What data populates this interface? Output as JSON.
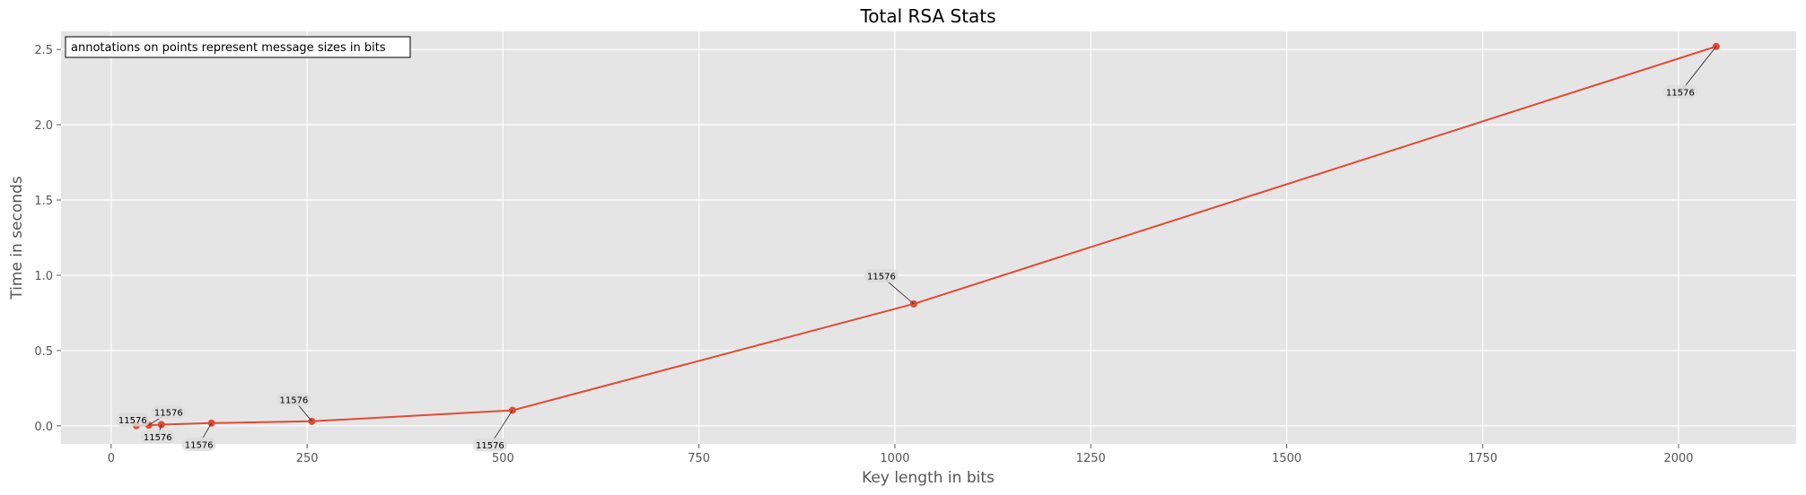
{
  "chart_data": {
    "type": "line",
    "title": "Total RSA Stats",
    "xlabel": "Key length in bits",
    "ylabel": "Time in seconds",
    "xlim": [
      -64,
      2150
    ],
    "ylim": [
      -0.12,
      2.62
    ],
    "x_ticks": [
      0,
      250,
      500,
      750,
      1000,
      1250,
      1500,
      1750,
      2000
    ],
    "y_ticks": [
      0.0,
      0.5,
      1.0,
      1.5,
      2.0,
      2.5
    ],
    "x_tick_labels": [
      "0",
      "250",
      "500",
      "750",
      "1000",
      "1250",
      "1500",
      "1750",
      "2000"
    ],
    "y_tick_labels": [
      "0.0",
      "0.5",
      "1.0",
      "1.5",
      "2.0",
      "2.5"
    ],
    "grid": true,
    "note": "annotations on points represent message sizes in bits",
    "series": [
      {
        "color": "#e24a33",
        "x": [
          32,
          48,
          64,
          128,
          256,
          512,
          1024,
          2048
        ],
        "y": [
          0.001,
          0.004,
          0.008,
          0.018,
          0.03,
          0.103,
          0.81,
          2.52
        ],
        "annotations": [
          "11576",
          "11576",
          "11576",
          "11576",
          "11576",
          "11576",
          "11576",
          "11576"
        ]
      }
    ]
  }
}
